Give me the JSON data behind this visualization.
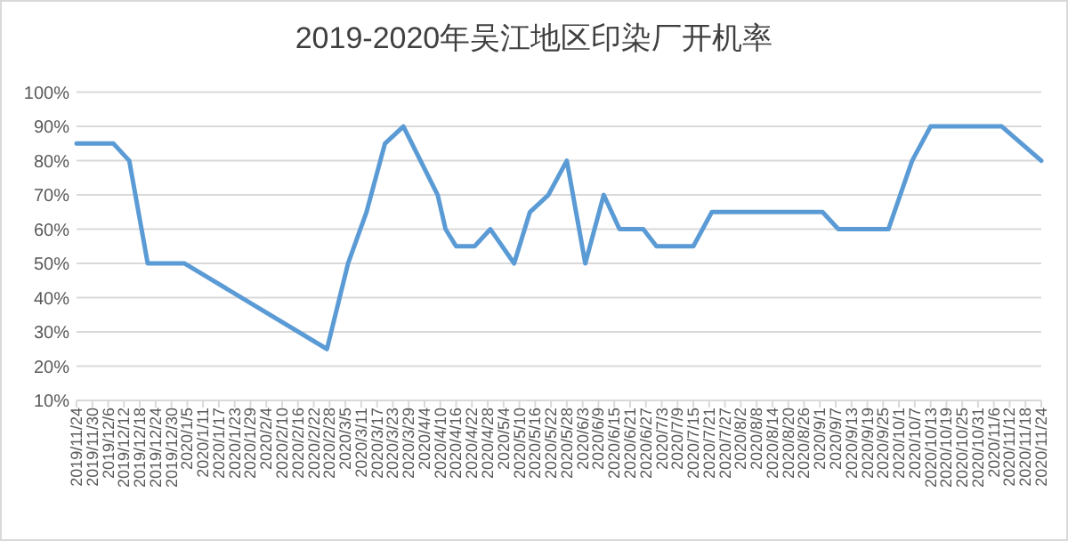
{
  "chart_data": {
    "type": "line",
    "title": "2019-2020年吴江地区印染厂开机率",
    "x": [
      "2019-11-24",
      "2019-12-08",
      "2019-12-14",
      "2019-12-21",
      "2020-01-04",
      "2020-02-27",
      "2020-03-06",
      "2020-03-13",
      "2020-03-20",
      "2020-03-27",
      "2020-04-09",
      "2020-04-12",
      "2020-04-16",
      "2020-04-23",
      "2020-04-29",
      "2020-05-08",
      "2020-05-14",
      "2020-05-21",
      "2020-05-28",
      "2020-06-04",
      "2020-06-11",
      "2020-06-17",
      "2020-06-26",
      "2020-07-01",
      "2020-07-15",
      "2020-07-22",
      "2020-09-02",
      "2020-09-08",
      "2020-09-27",
      "2020-10-06",
      "2020-10-13",
      "2020-11-09",
      "2020-11-24"
    ],
    "series": [
      {
        "color": "#5b9bd5",
        "values": [
          85,
          85,
          80,
          50,
          50,
          25,
          50,
          65,
          85,
          90,
          70,
          60,
          55,
          55,
          60,
          50,
          65,
          70,
          80,
          50,
          70,
          60,
          60,
          55,
          55,
          65,
          65,
          60,
          60,
          80,
          90,
          90,
          80
        ]
      }
    ],
    "ylim": [
      10,
      100
    ],
    "yticks": [
      {
        "value": 10,
        "label": "10%"
      },
      {
        "value": 20,
        "label": "20%"
      },
      {
        "value": 30,
        "label": "30%"
      },
      {
        "value": 40,
        "label": "40%"
      },
      {
        "value": 50,
        "label": "50%"
      },
      {
        "value": 60,
        "label": "60%"
      },
      {
        "value": 70,
        "label": "70%"
      },
      {
        "value": 80,
        "label": "80%"
      },
      {
        "value": 90,
        "label": "90%"
      },
      {
        "value": 100,
        "label": "100%"
      }
    ],
    "xlim": [
      "2019-11-24",
      "2020-11-24"
    ],
    "xticks": [
      {
        "value": "2019-11-24",
        "label": "2019/11/24"
      },
      {
        "value": "2019-11-30",
        "label": "2019/11/30"
      },
      {
        "value": "2019-12-06",
        "label": "2019/12/6"
      },
      {
        "value": "2019-12-12",
        "label": "2019/12/12"
      },
      {
        "value": "2019-12-18",
        "label": "2019/12/18"
      },
      {
        "value": "2019-12-24",
        "label": "2019/12/24"
      },
      {
        "value": "2019-12-30",
        "label": "2019/12/30"
      },
      {
        "value": "2020-01-05",
        "label": "2020/1/5"
      },
      {
        "value": "2020-01-11",
        "label": "2020/1/11"
      },
      {
        "value": "2020-01-17",
        "label": "2020/1/17"
      },
      {
        "value": "2020-01-23",
        "label": "2020/1/23"
      },
      {
        "value": "2020-01-29",
        "label": "2020/1/29"
      },
      {
        "value": "2020-02-04",
        "label": "2020/2/4"
      },
      {
        "value": "2020-02-10",
        "label": "2020/2/10"
      },
      {
        "value": "2020-02-16",
        "label": "2020/2/16"
      },
      {
        "value": "2020-02-22",
        "label": "2020/2/22"
      },
      {
        "value": "2020-02-28",
        "label": "2020/2/28"
      },
      {
        "value": "2020-03-05",
        "label": "2020/3/5"
      },
      {
        "value": "2020-03-11",
        "label": "2020/3/11"
      },
      {
        "value": "2020-03-17",
        "label": "2020/3/17"
      },
      {
        "value": "2020-03-23",
        "label": "2020/3/23"
      },
      {
        "value": "2020-03-29",
        "label": "2020/3/29"
      },
      {
        "value": "2020-04-04",
        "label": "2020/4/4"
      },
      {
        "value": "2020-04-10",
        "label": "2020/4/10"
      },
      {
        "value": "2020-04-16",
        "label": "2020/4/16"
      },
      {
        "value": "2020-04-22",
        "label": "2020/4/22"
      },
      {
        "value": "2020-04-28",
        "label": "2020/4/28"
      },
      {
        "value": "2020-05-04",
        "label": "2020/5/4"
      },
      {
        "value": "2020-05-10",
        "label": "2020/5/10"
      },
      {
        "value": "2020-05-16",
        "label": "2020/5/16"
      },
      {
        "value": "2020-05-22",
        "label": "2020/5/22"
      },
      {
        "value": "2020-05-28",
        "label": "2020/5/28"
      },
      {
        "value": "2020-06-03",
        "label": "2020/6/3"
      },
      {
        "value": "2020-06-09",
        "label": "2020/6/9"
      },
      {
        "value": "2020-06-15",
        "label": "2020/6/15"
      },
      {
        "value": "2020-06-21",
        "label": "2020/6/21"
      },
      {
        "value": "2020-06-27",
        "label": "2020/6/27"
      },
      {
        "value": "2020-07-03",
        "label": "2020/7/3"
      },
      {
        "value": "2020-07-09",
        "label": "2020/7/9"
      },
      {
        "value": "2020-07-15",
        "label": "2020/7/15"
      },
      {
        "value": "2020-07-21",
        "label": "2020/7/21"
      },
      {
        "value": "2020-07-27",
        "label": "2020/7/27"
      },
      {
        "value": "2020-08-02",
        "label": "2020/8/2"
      },
      {
        "value": "2020-08-08",
        "label": "2020/8/8"
      },
      {
        "value": "2020-08-14",
        "label": "2020/8/14"
      },
      {
        "value": "2020-08-20",
        "label": "2020/8/20"
      },
      {
        "value": "2020-08-26",
        "label": "2020/8/26"
      },
      {
        "value": "2020-09-01",
        "label": "2020/9/1"
      },
      {
        "value": "2020-09-07",
        "label": "2020/9/7"
      },
      {
        "value": "2020-09-13",
        "label": "2020/9/13"
      },
      {
        "value": "2020-09-19",
        "label": "2020/9/19"
      },
      {
        "value": "2020-09-25",
        "label": "2020/9/25"
      },
      {
        "value": "2020-10-01",
        "label": "2020/10/1"
      },
      {
        "value": "2020-10-07",
        "label": "2020/10/7"
      },
      {
        "value": "2020-10-13",
        "label": "2020/10/13"
      },
      {
        "value": "2020-10-19",
        "label": "2020/10/19"
      },
      {
        "value": "2020-10-25",
        "label": "2020/10/25"
      },
      {
        "value": "2020-10-31",
        "label": "2020/10/31"
      },
      {
        "value": "2020-11-06",
        "label": "2020/11/6"
      },
      {
        "value": "2020-11-12",
        "label": "2020/11/12"
      },
      {
        "value": "2020-11-18",
        "label": "2020/11/18"
      },
      {
        "value": "2020-11-24",
        "label": "2020/11/24"
      }
    ],
    "grid": "y",
    "marker": "none",
    "line_style": "solid"
  }
}
